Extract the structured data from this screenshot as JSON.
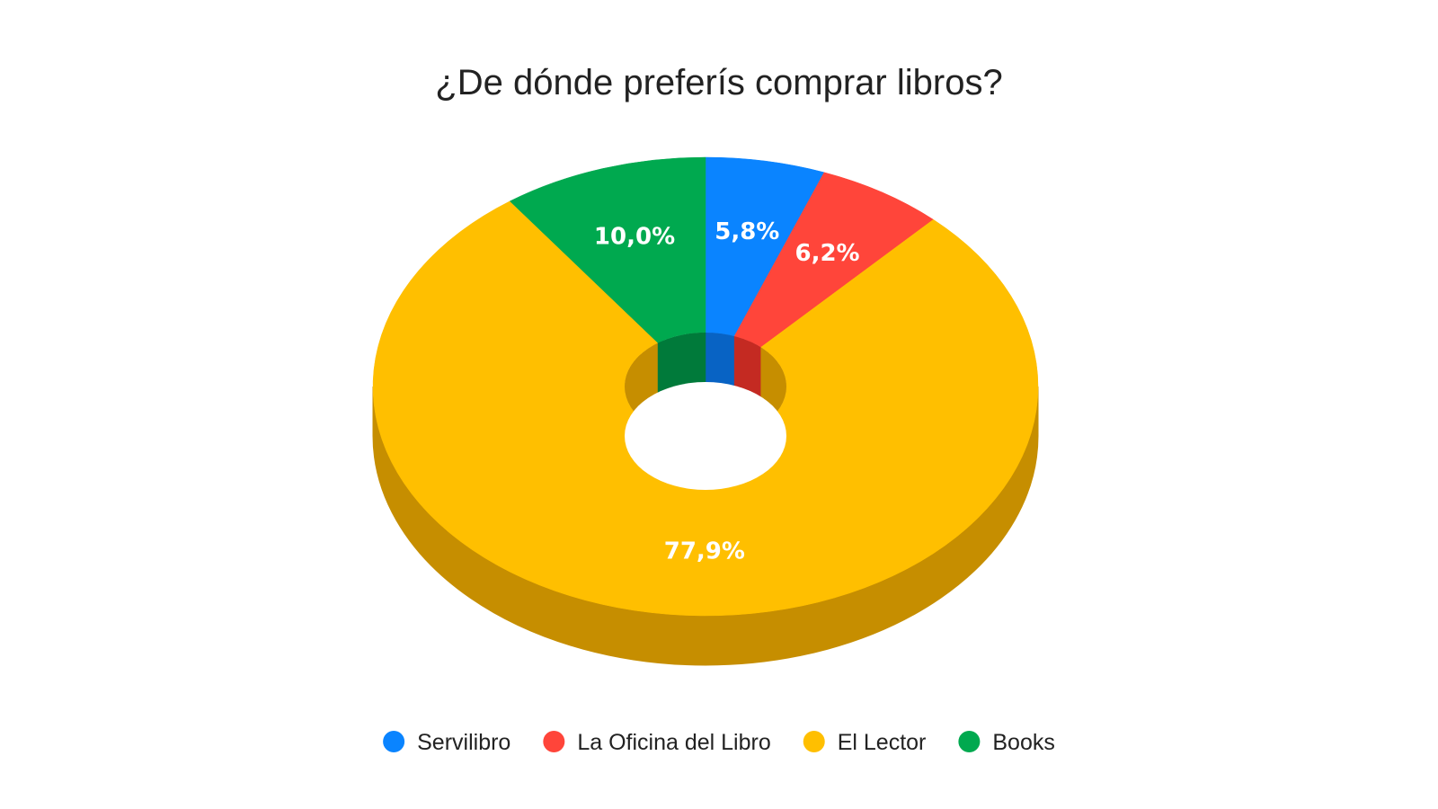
{
  "chart_data": {
    "type": "pie",
    "style": "3d-donut",
    "title": "¿De dónde preferís comprar libros?",
    "legend_position": "bottom",
    "slices": [
      {
        "name": "Servilibro",
        "value": 5.8,
        "label": "5,8%",
        "color": "#0a84ff",
        "side_color": "#0863c4"
      },
      {
        "name": "La Oficina del Libro",
        "value": 6.2,
        "label": "6,2%",
        "color": "#ff453a",
        "side_color": "#c42a22"
      },
      {
        "name": "El Lector",
        "value": 77.9,
        "label": "77,9%",
        "color": "#ffbf00",
        "side_color": "#c68e00"
      },
      {
        "name": "Books",
        "value": 10.0,
        "label": "10,0%",
        "color": "#00a94f",
        "side_color": "#007a3a"
      }
    ]
  }
}
